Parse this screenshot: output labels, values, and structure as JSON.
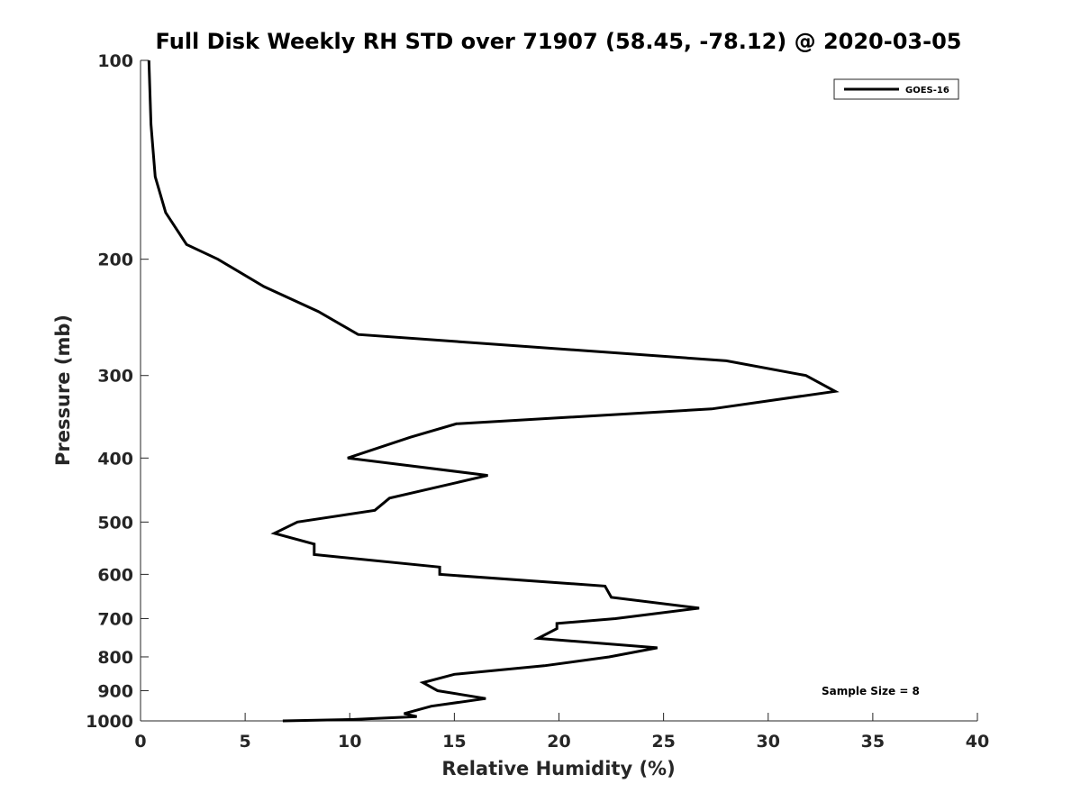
{
  "chart_data": {
    "type": "line",
    "title": "Full Disk Weekly RH STD over 71907 (58.45, -78.12) @ 2020-03-05",
    "xlabel": "Relative Humidity (%)",
    "ylabel": "Pressure (mb)",
    "xlim": [
      0,
      40
    ],
    "ylim": [
      1000,
      100
    ],
    "y_scale": "log",
    "y_reversed": true,
    "x_ticks": [
      "0",
      "5",
      "10",
      "15",
      "20",
      "25",
      "30",
      "35",
      "40"
    ],
    "y_ticks": [
      "100",
      "200",
      "300",
      "400",
      "500",
      "600",
      "700",
      "800",
      "900",
      "1000"
    ],
    "grid": false,
    "legend_position": "top-right",
    "annotation": "Sample Size = 8",
    "series": [
      {
        "name": "GOES-16",
        "color": "#000000",
        "points": [
          [
            0.4,
            100
          ],
          [
            0.5,
            125
          ],
          [
            0.7,
            150
          ],
          [
            1.2,
            170
          ],
          [
            2.2,
            190
          ],
          [
            3.7,
            200
          ],
          [
            5.9,
            220
          ],
          [
            8.5,
            240
          ],
          [
            10.4,
            260
          ],
          [
            28.0,
            285
          ],
          [
            31.8,
            300
          ],
          [
            33.2,
            317
          ],
          [
            27.3,
            337
          ],
          [
            15.1,
            355
          ],
          [
            12.9,
            372
          ],
          [
            9.9,
            400
          ],
          [
            16.6,
            425
          ],
          [
            11.9,
            460
          ],
          [
            11.2,
            480
          ],
          [
            7.5,
            500
          ],
          [
            6.4,
            520
          ],
          [
            8.3,
            540
          ],
          [
            8.3,
            560
          ],
          [
            14.3,
            585
          ],
          [
            14.3,
            600
          ],
          [
            22.2,
            625
          ],
          [
            22.5,
            650
          ],
          [
            26.7,
            675
          ],
          [
            22.7,
            700
          ],
          [
            19.9,
            712
          ],
          [
            19.9,
            725
          ],
          [
            19.0,
            750
          ],
          [
            24.7,
            775
          ],
          [
            22.4,
            800
          ],
          [
            19.3,
            825
          ],
          [
            15.0,
            850
          ],
          [
            13.5,
            875
          ],
          [
            14.2,
            900
          ],
          [
            16.5,
            925
          ],
          [
            13.9,
            950
          ],
          [
            12.6,
            975
          ],
          [
            13.2,
            985
          ],
          [
            10.2,
            995
          ],
          [
            6.8,
            1000
          ]
        ]
      }
    ]
  }
}
